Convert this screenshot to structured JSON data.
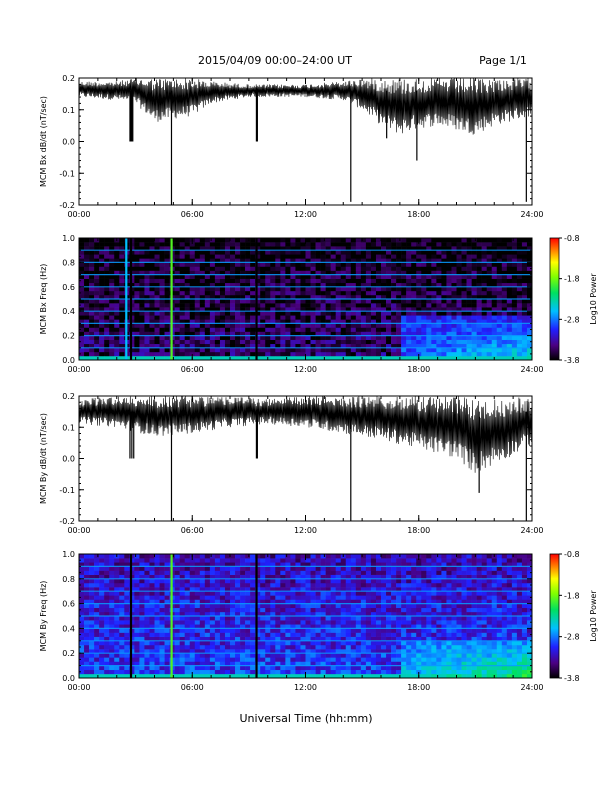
{
  "header": {
    "title": "2015/04/09  00:00–24:00 UT",
    "page": "Page 1/1"
  },
  "x_axis_title": "Universal Time (hh:mm)",
  "chart_data": [
    {
      "type": "line",
      "ylabel": "MCM Bx dB/dt (nT/sec)",
      "xlim": [
        0,
        24
      ],
      "ylim": [
        -0.2,
        0.2
      ],
      "x_ticks": [
        "00:00",
        "06:00",
        "12:00",
        "18:00",
        "24:00"
      ],
      "y_ticks": [
        "-0.2",
        "-0.1",
        "0.0",
        "0.1",
        "0.2"
      ],
      "baseline": 0.16,
      "envelope": [
        {
          "x": 0,
          "lo": 0.14,
          "hi": 0.19
        },
        {
          "x": 2,
          "lo": 0.13,
          "hi": 0.19
        },
        {
          "x": 3,
          "lo": 0.12,
          "hi": 0.2
        },
        {
          "x": 4,
          "lo": 0.06,
          "hi": 0.2
        },
        {
          "x": 6,
          "lo": 0.08,
          "hi": 0.2
        },
        {
          "x": 7,
          "lo": 0.12,
          "hi": 0.19
        },
        {
          "x": 9,
          "lo": 0.14,
          "hi": 0.18
        },
        {
          "x": 12,
          "lo": 0.14,
          "hi": 0.18
        },
        {
          "x": 14,
          "lo": 0.13,
          "hi": 0.19
        },
        {
          "x": 15,
          "lo": 0.1,
          "hi": 0.2
        },
        {
          "x": 16,
          "lo": 0.05,
          "hi": 0.2
        },
        {
          "x": 17,
          "lo": 0.02,
          "hi": 0.2
        },
        {
          "x": 18,
          "lo": 0.04,
          "hi": 0.2
        },
        {
          "x": 19,
          "lo": 0.05,
          "hi": 0.2
        },
        {
          "x": 21,
          "lo": 0.02,
          "hi": 0.2
        },
        {
          "x": 22,
          "lo": 0.05,
          "hi": 0.2
        },
        {
          "x": 24,
          "lo": 0.08,
          "hi": 0.2
        }
      ],
      "spikes": [
        {
          "x": 2.7,
          "y": 0.0
        },
        {
          "x": 2.75,
          "y": 0.0
        },
        {
          "x": 2.8,
          "y": 0.0
        },
        {
          "x": 2.85,
          "y": 0.0
        },
        {
          "x": 4.9,
          "y": -0.2
        },
        {
          "x": 9.4,
          "y": 0.0
        },
        {
          "x": 9.45,
          "y": 0.0
        },
        {
          "x": 14.4,
          "y": -0.19
        },
        {
          "x": 17.9,
          "y": -0.06
        },
        {
          "x": 16.3,
          "y": 0.01
        },
        {
          "x": 23.7,
          "y": -0.19
        }
      ]
    },
    {
      "type": "heatmap",
      "ylabel": "MCM Bx Freq (Hz)",
      "xlim": [
        0,
        24
      ],
      "ylim": [
        0.0,
        1.0
      ],
      "x_ticks": [
        "00:00",
        "06:00",
        "12:00",
        "18:00",
        "24:00"
      ],
      "y_ticks": [
        "0.0",
        "0.2",
        "0.4",
        "0.6",
        "0.8",
        "1.0"
      ],
      "colorbar": {
        "label": "Log10 Power",
        "ticks": [
          "-0.8",
          "-1.8",
          "-2.8",
          "-3.8"
        ],
        "range": [
          -3.8,
          -0.8
        ]
      },
      "background_level": -3.5,
      "harmonic_lines_hz": [
        0.1,
        0.2,
        0.3,
        0.4,
        0.5,
        0.6,
        0.7,
        0.8,
        0.9
      ],
      "vertical_features": [
        {
          "x": 2.5,
          "level": -2.6
        },
        {
          "x": 2.75,
          "level": -3.8
        },
        {
          "x": 4.9,
          "level": -1.9
        },
        {
          "x": 9.4,
          "level": -3.8
        }
      ],
      "activity_region": {
        "x_from": 17,
        "x_to": 24,
        "f_from": 0.0,
        "f_to": 0.35,
        "level": -2.5
      }
    },
    {
      "type": "line",
      "ylabel": "MCM By dB/dt (nT/sec)",
      "xlim": [
        0,
        24
      ],
      "ylim": [
        -0.2,
        0.2
      ],
      "x_ticks": [
        "00:00",
        "06:00",
        "12:00",
        "18:00",
        "24:00"
      ],
      "y_ticks": [
        "-0.2",
        "-0.1",
        "0.0",
        "0.1",
        "0.2"
      ],
      "baseline": 0.15,
      "envelope": [
        {
          "x": 0,
          "lo": 0.11,
          "hi": 0.19
        },
        {
          "x": 2,
          "lo": 0.1,
          "hi": 0.2
        },
        {
          "x": 4,
          "lo": 0.07,
          "hi": 0.2
        },
        {
          "x": 6,
          "lo": 0.08,
          "hi": 0.2
        },
        {
          "x": 8,
          "lo": 0.1,
          "hi": 0.2
        },
        {
          "x": 10,
          "lo": 0.11,
          "hi": 0.19
        },
        {
          "x": 12,
          "lo": 0.1,
          "hi": 0.2
        },
        {
          "x": 14,
          "lo": 0.08,
          "hi": 0.2
        },
        {
          "x": 16,
          "lo": 0.06,
          "hi": 0.2
        },
        {
          "x": 18,
          "lo": 0.03,
          "hi": 0.2
        },
        {
          "x": 20,
          "lo": 0.0,
          "hi": 0.2
        },
        {
          "x": 21,
          "lo": -0.05,
          "hi": 0.19
        },
        {
          "x": 22,
          "lo": -0.02,
          "hi": 0.19
        },
        {
          "x": 24,
          "lo": 0.04,
          "hi": 0.2
        }
      ],
      "spikes": [
        {
          "x": 2.7,
          "y": 0.0
        },
        {
          "x": 2.8,
          "y": 0.0
        },
        {
          "x": 2.9,
          "y": 0.0
        },
        {
          "x": 4.9,
          "y": -0.2
        },
        {
          "x": 9.4,
          "y": 0.0
        },
        {
          "x": 9.45,
          "y": 0.0
        },
        {
          "x": 14.4,
          "y": -0.2
        },
        {
          "x": 21.2,
          "y": -0.11
        },
        {
          "x": 23.7,
          "y": -0.2
        }
      ]
    },
    {
      "type": "heatmap",
      "ylabel": "MCM By Freq (Hz)",
      "xlim": [
        0,
        24
      ],
      "ylim": [
        0.0,
        1.0
      ],
      "x_ticks": [
        "00:00",
        "06:00",
        "12:00",
        "18:00",
        "24:00"
      ],
      "y_ticks": [
        "0.0",
        "0.2",
        "0.4",
        "0.6",
        "0.8",
        "1.0"
      ],
      "colorbar": {
        "label": "Log10 Power",
        "ticks": [
          "-0.8",
          "-1.8",
          "-2.8",
          "-3.8"
        ],
        "range": [
          -3.8,
          -0.8
        ]
      },
      "background_level": -3.0,
      "harmonic_lines_hz": [
        0.1,
        0.2,
        0.3,
        0.4,
        0.5,
        0.6,
        0.7,
        0.8,
        0.9
      ],
      "vertical_features": [
        {
          "x": 2.75,
          "level": -3.8
        },
        {
          "x": 4.9,
          "level": -1.9
        },
        {
          "x": 9.4,
          "level": -3.8
        }
      ],
      "activity_region": {
        "x_from": 17,
        "x_to": 24,
        "f_from": 0.0,
        "f_to": 0.3,
        "level": -2.2
      }
    }
  ]
}
